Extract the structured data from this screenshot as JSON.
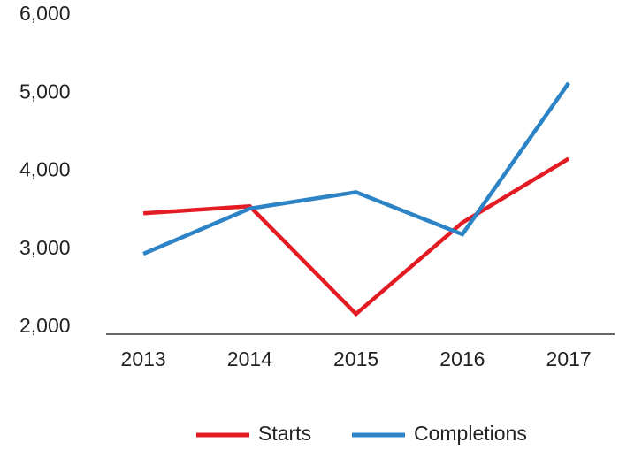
{
  "chart_data": {
    "type": "line",
    "categories": [
      "2013",
      "2014",
      "2015",
      "2016",
      "2017"
    ],
    "series": [
      {
        "name": "Starts",
        "color": "#e31b23",
        "values": [
          3550,
          3640,
          2260,
          3430,
          4250
        ]
      },
      {
        "name": "Completions",
        "color": "#2c83c5",
        "values": [
          3030,
          3610,
          3820,
          3280,
          5220
        ]
      }
    ],
    "ylim": [
      2000,
      6000
    ],
    "yticks": [
      {
        "value": 2000,
        "label": "2,000"
      },
      {
        "value": 3000,
        "label": "3,000"
      },
      {
        "value": 4000,
        "label": "4,000"
      },
      {
        "value": 5000,
        "label": "5,000"
      },
      {
        "value": 6000,
        "label": "6,000"
      }
    ],
    "grid": false,
    "legend": "bottom"
  }
}
